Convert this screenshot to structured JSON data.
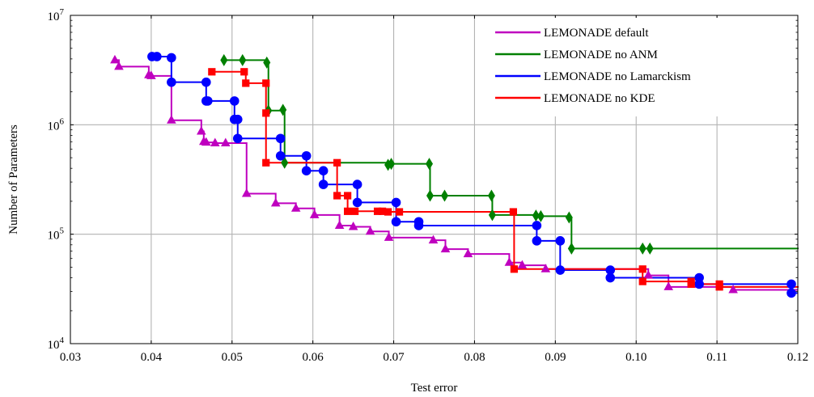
{
  "chart_data": {
    "type": "line",
    "xlabel": "Test error",
    "ylabel": "Number of Parameters",
    "xlim": [
      0.03,
      0.12
    ],
    "ylim": [
      10000,
      10000000
    ],
    "yscale": "log",
    "grid": true,
    "legend_position": "top-right",
    "x_ticks": [
      0.03,
      0.04,
      0.05,
      0.06,
      0.07,
      0.08,
      0.09,
      0.1,
      0.11,
      0.12
    ],
    "x_tick_labels": [
      "0.03",
      "0.04",
      "0.05",
      "0.06",
      "0.07",
      "0.08",
      "0.09",
      "0.10",
      "0.11",
      "0.12"
    ],
    "y_ticks": [
      {
        "value": 10000,
        "base": "10",
        "exp": "4"
      },
      {
        "value": 100000,
        "base": "10",
        "exp": "5"
      },
      {
        "value": 1000000,
        "base": "10",
        "exp": "6"
      },
      {
        "value": 10000000,
        "base": "10",
        "exp": "7"
      }
    ],
    "series": [
      {
        "name": "LEMONADE default",
        "color": "#bf00bf",
        "marker": "triangle",
        "points": [
          [
            0.0355,
            3900000
          ],
          [
            0.036,
            3400000
          ],
          [
            0.0397,
            2850000
          ],
          [
            0.04,
            2800000
          ],
          [
            0.0425,
            1100000
          ],
          [
            0.0462,
            870000
          ],
          [
            0.0465,
            700000
          ],
          [
            0.0468,
            690000
          ],
          [
            0.0479,
            680000
          ],
          [
            0.0492,
            680000
          ],
          [
            0.0518,
            235000
          ],
          [
            0.0554,
            192000
          ],
          [
            0.0579,
            172000
          ],
          [
            0.0602,
            150000
          ],
          [
            0.0633,
            120000
          ],
          [
            0.065,
            117000
          ],
          [
            0.0671,
            106000
          ],
          [
            0.0694,
            93000
          ],
          [
            0.0749,
            88000
          ],
          [
            0.0764,
            73000
          ],
          [
            0.0792,
            66000
          ],
          [
            0.0843,
            55000
          ],
          [
            0.0859,
            52000
          ],
          [
            0.0888,
            48000
          ],
          [
            0.1015,
            42000
          ],
          [
            0.104,
            33000
          ],
          [
            0.112,
            31000
          ]
        ],
        "line_end_x": 0.12,
        "line_end_y": 31000
      },
      {
        "name": "LEMONADE no ANM",
        "color": "#008000",
        "marker": "diamond",
        "points": [
          [
            0.049,
            3900000
          ],
          [
            0.0513,
            3900000
          ],
          [
            0.0543,
            3700000
          ],
          [
            0.0545,
            1350000
          ],
          [
            0.0563,
            1370000
          ],
          [
            0.0565,
            450000
          ],
          [
            0.0693,
            430000
          ],
          [
            0.0697,
            440000
          ],
          [
            0.0744,
            440000
          ],
          [
            0.0745,
            225000
          ],
          [
            0.0763,
            225000
          ],
          [
            0.0821,
            225000
          ],
          [
            0.0822,
            150000
          ],
          [
            0.0876,
            148000
          ],
          [
            0.0882,
            146000
          ],
          [
            0.0917,
            142000
          ],
          [
            0.092,
            74000
          ],
          [
            0.1008,
            74000
          ],
          [
            0.1017,
            74000
          ]
        ],
        "line_end_x": 0.12,
        "line_end_y": 73000
      },
      {
        "name": "LEMONADE no Lamarckism",
        "color": "#0000ff",
        "marker": "circle",
        "points": [
          [
            0.0401,
            4200000
          ],
          [
            0.0407,
            4200000
          ],
          [
            0.0425,
            4100000
          ],
          [
            0.0425,
            2450000
          ],
          [
            0.0468,
            2450000
          ],
          [
            0.0468,
            1650000
          ],
          [
            0.047,
            1650000
          ],
          [
            0.0503,
            1650000
          ],
          [
            0.0503,
            1120000
          ],
          [
            0.0507,
            1120000
          ],
          [
            0.0507,
            750000
          ],
          [
            0.056,
            750000
          ],
          [
            0.056,
            520000
          ],
          [
            0.0592,
            520000
          ],
          [
            0.0592,
            380000
          ],
          [
            0.0613,
            380000
          ],
          [
            0.0613,
            285000
          ],
          [
            0.0655,
            285000
          ],
          [
            0.0655,
            195000
          ],
          [
            0.0703,
            195000
          ],
          [
            0.0703,
            130000
          ],
          [
            0.0731,
            130000
          ],
          [
            0.0731,
            120000
          ],
          [
            0.0877,
            120000
          ],
          [
            0.0877,
            87000
          ],
          [
            0.0906,
            87000
          ],
          [
            0.0906,
            47000
          ],
          [
            0.0968,
            47000
          ],
          [
            0.0968,
            40000
          ],
          [
            0.1078,
            40000
          ],
          [
            0.1078,
            35000
          ],
          [
            0.1192,
            35000
          ],
          [
            0.1192,
            29000
          ]
        ],
        "line_end_x": 0.12,
        "line_end_y": 29000
      },
      {
        "name": "LEMONADE no KDE",
        "color": "#ff0000",
        "marker": "square",
        "points": [
          [
            0.0475,
            3050000
          ],
          [
            0.0515,
            3050000
          ],
          [
            0.0517,
            2400000
          ],
          [
            0.0542,
            2400000
          ],
          [
            0.0542,
            1280000
          ],
          [
            0.0542,
            450000
          ],
          [
            0.063,
            450000
          ],
          [
            0.063,
            225000
          ],
          [
            0.0643,
            225000
          ],
          [
            0.0643,
            162000
          ],
          [
            0.0652,
            162000
          ],
          [
            0.068,
            162000
          ],
          [
            0.0686,
            162000
          ],
          [
            0.0693,
            160000
          ],
          [
            0.0707,
            160000
          ],
          [
            0.0848,
            160000
          ],
          [
            0.0849,
            48000
          ],
          [
            0.1008,
            48000
          ],
          [
            0.1008,
            37000
          ],
          [
            0.1068,
            37000
          ],
          [
            0.1068,
            35000
          ],
          [
            0.1103,
            35000
          ],
          [
            0.1103,
            33000
          ]
        ],
        "line_end_x": 0.12,
        "line_end_y": 32500
      }
    ]
  }
}
